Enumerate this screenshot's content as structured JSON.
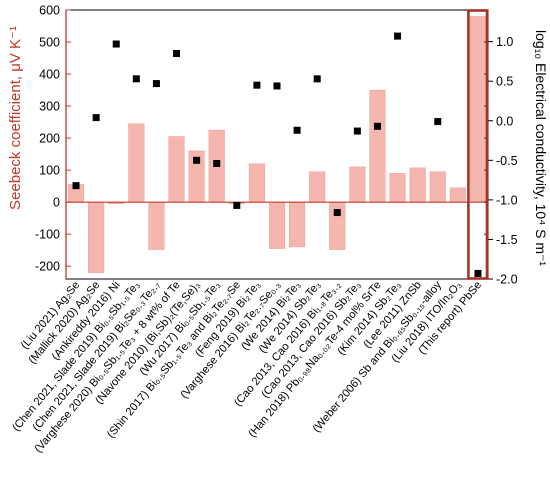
{
  "chart_data": {
    "type": "bar",
    "title": "",
    "y_left": {
      "label": "Seebeck coefficient, μV K⁻¹",
      "range": [
        -240,
        600
      ],
      "ticks": [
        "600",
        "500",
        "400",
        "300",
        "200",
        "100",
        "0",
        "-100",
        "-200"
      ],
      "color": "#c0392b"
    },
    "y_right": {
      "label": "log₁₀ Electrical conductivity, 10⁴ S m⁻¹",
      "range": [
        -2.0,
        1.4
      ],
      "ticks": [
        "1.0",
        "0.5",
        "0.0",
        "-0.5",
        "-1.0",
        "-1.5",
        "-2.0"
      ]
    },
    "categories": [
      "(Liu 2021) Ag₂Se",
      "(Mallick 2020) Ag₂Se",
      "(Ankireddy 2016) Ni",
      "(Chen 2021, Slade 2019) Bi₀.₅Sb₁.₅Te₃",
      "(Chen 2021, Slade 2019) Bi₂Se₀.₃Te₂.₇",
      "(Varghese 2020) Bi₀.₅Sb₁.₅Te₃ + 8 wt% of Te",
      "(Navone 2010) (Bi,Sb)₂(Te,Se)₃",
      "(Wu 2017) Bi₀.₅Sb₁.₅Te₃",
      "(Shin 2017) Bi₀.₅Sb₁.₅Te₃ and Bi₂Te₂.₇Se",
      "(Feng 2019) Bi₂Te₃",
      "(Varghese 2016) Bi₂Te₂.₇Se₀.₃",
      "(We 2014) Bi₂Te₃",
      "(We 2014) Sb₂Te₃",
      "(Cao 2013, Cao 2016) Bi₁.₈Te₃.₂",
      "(Cao 2013, Cao 2016) Sb₂Te₃",
      "(Han 2018) Pb₀.₉₈Na₀.₀₂Te-4 mol% SrTe",
      "(Kim 2014) Sb₂Te₃",
      "(Lee 2011) ZnSb",
      "(Weber 2006) Sb and Bi₀.₈₅Sb₀.₁₅-alloy",
      "(Liu 2018) ITO/In₂O₃",
      "(This report) PbSe"
    ],
    "series": [
      {
        "kind": "bar",
        "axis": "left",
        "color": "#f4b6ae",
        "values": [
          55,
          -220,
          -5,
          245,
          -148,
          205,
          160,
          225,
          -5,
          120,
          -145,
          -140,
          95,
          -148,
          110,
          350,
          90,
          107,
          95,
          45,
          580
        ]
      },
      {
        "kind": "scatter",
        "axis": "right",
        "color": "#000000",
        "marker": "square",
        "values": [
          -0.82,
          0.04,
          0.97,
          0.53,
          0.47,
          0.85,
          -0.5,
          -0.54,
          -1.07,
          0.45,
          0.44,
          -0.12,
          0.53,
          -1.16,
          -0.13,
          -0.07,
          1.07,
          null,
          -0.01,
          null,
          -1.93
        ]
      }
    ],
    "highlight_category": "(This report) PbSe",
    "highlight_color": "#a93226",
    "grid": false,
    "legend": "none"
  }
}
